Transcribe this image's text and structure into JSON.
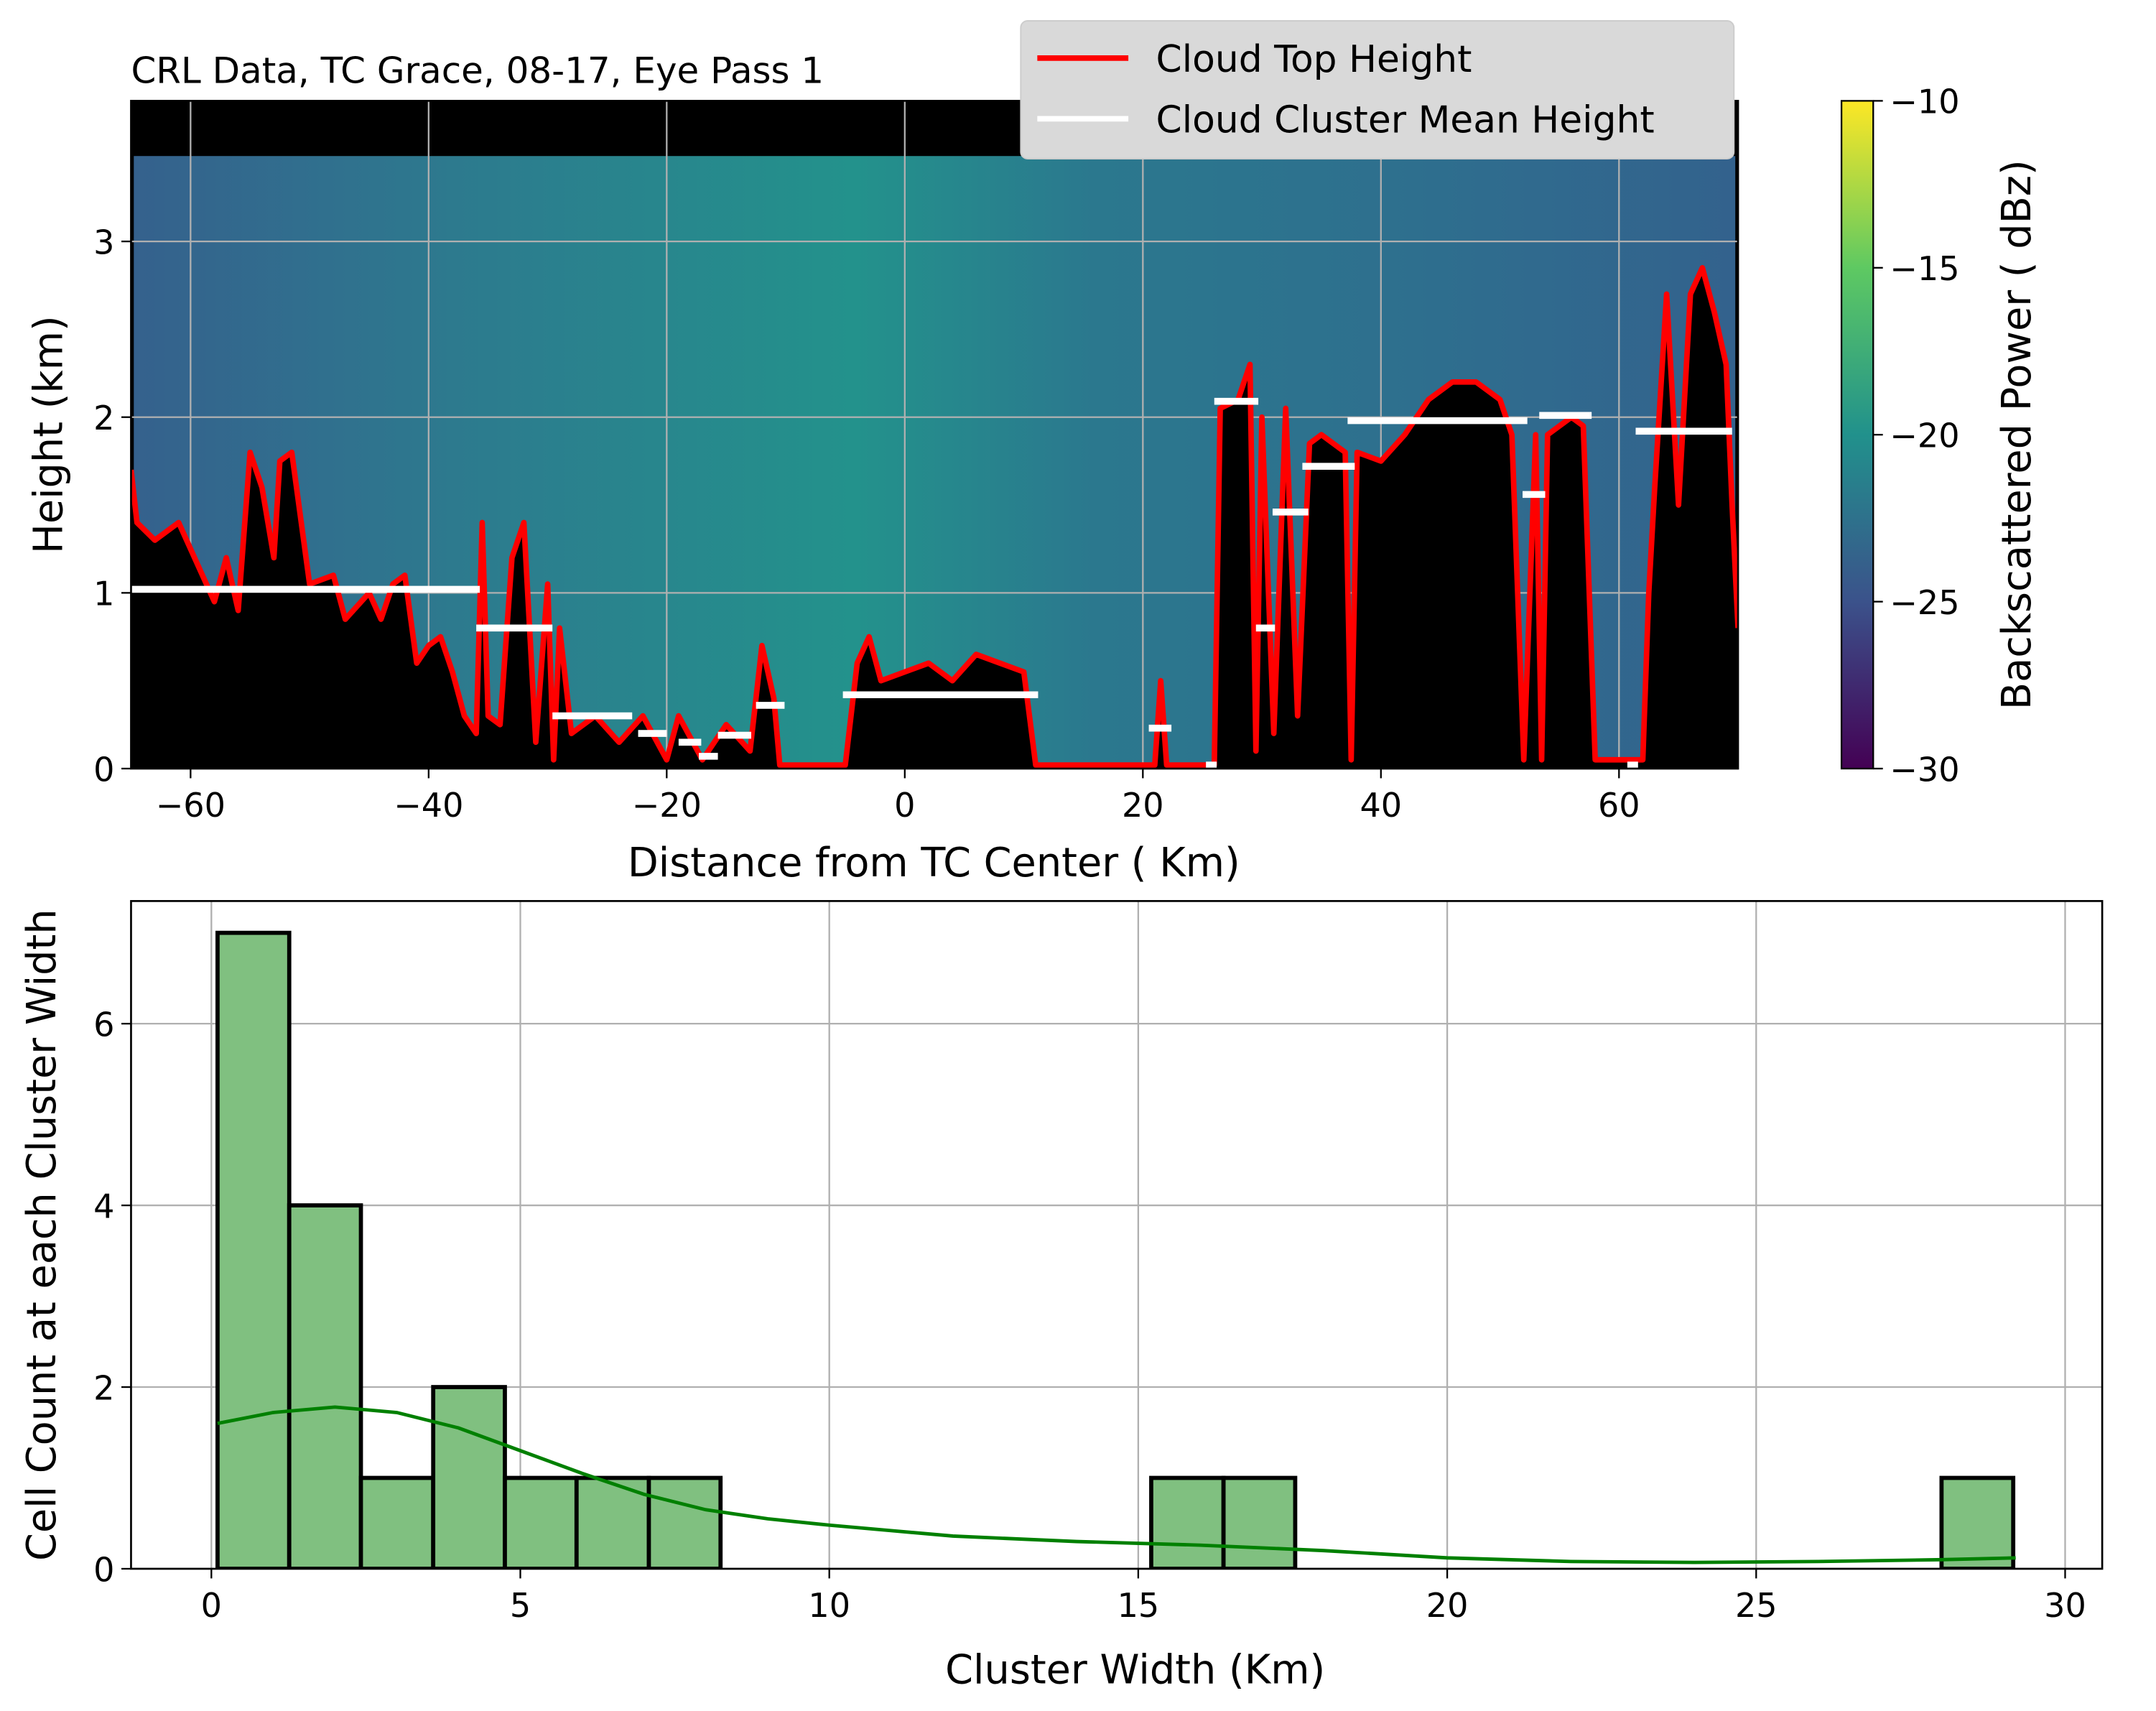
{
  "chart_data": [
    {
      "type": "curtain",
      "title": "CRL Data, TC Grace, 08-17, Eye Pass 1",
      "xlabel": "Distance from TC Center ( Km)",
      "ylabel": "Height (km)",
      "xlim": [
        -65,
        70
      ],
      "ylim": [
        0,
        3.8
      ],
      "xticks": [
        {
          "value": -60,
          "label": "−60"
        },
        {
          "value": -40,
          "label": "−40"
        },
        {
          "value": -20,
          "label": "−20"
        },
        0,
        20,
        40,
        60
      ],
      "yticks": [
        0,
        1,
        2,
        3
      ],
      "grid": true,
      "legend": "upper right",
      "colorbar": {
        "label": "Backscattered Power ( dBz)",
        "colormap": "viridis",
        "lim": [
          -30,
          -10
        ],
        "ticks": [
          {
            "value": -30,
            "label": "−30"
          },
          {
            "value": -25,
            "label": "−25"
          },
          {
            "value": -20,
            "label": "−20"
          },
          {
            "value": -15,
            "label": "−15"
          },
          {
            "value": -10,
            "label": "−10"
          }
        ]
      },
      "series": [
        {
          "name": "Cloud Top Height",
          "color": "#ff0000",
          "x": [
            -65,
            -64.5,
            -63,
            -61,
            -59,
            -58,
            -57,
            -56,
            -55,
            -54,
            -53,
            -52.5,
            -51.5,
            -50.5,
            -50,
            -48,
            -47,
            -45,
            -44,
            -43,
            -42,
            -41,
            -40,
            -39,
            -38,
            -37,
            -36,
            -35.5,
            -35,
            -34,
            -33,
            -32,
            -31,
            -30,
            -29.5,
            -29,
            -28,
            -26,
            -24,
            -22,
            -20,
            -19,
            -17,
            -15,
            -13,
            -12,
            -11,
            -10.5,
            -5,
            -4,
            -3,
            -2,
            0,
            2,
            4,
            6,
            8,
            10,
            11,
            21,
            21.5,
            22,
            26,
            26.5,
            28,
            29,
            29.5,
            30,
            31,
            32,
            33,
            34,
            35,
            36,
            37,
            37.5,
            38,
            40,
            42,
            44,
            46,
            48,
            50,
            51,
            52,
            53,
            53.5,
            54,
            56,
            57,
            58,
            62,
            62.5,
            63,
            64,
            65,
            66,
            67,
            68,
            69,
            69.5,
            70
          ],
          "values": [
            1.7,
            1.4,
            1.3,
            1.4,
            1.1,
            0.95,
            1.2,
            0.9,
            1.8,
            1.6,
            1.2,
            1.75,
            1.8,
            1.3,
            1.05,
            1.1,
            0.85,
            1.0,
            0.85,
            1.05,
            1.1,
            0.6,
            0.7,
            0.75,
            0.55,
            0.3,
            0.2,
            1.4,
            0.3,
            0.25,
            1.2,
            1.4,
            0.15,
            1.05,
            0.05,
            0.8,
            0.2,
            0.3,
            0.15,
            0.3,
            0.05,
            0.3,
            0.05,
            0.25,
            0.1,
            0.7,
            0.4,
            0.02,
            0.02,
            0.6,
            0.75,
            0.5,
            0.55,
            0.6,
            0.5,
            0.65,
            0.6,
            0.55,
            0.02,
            0.02,
            0.5,
            0.02,
            0.02,
            2.05,
            2.1,
            2.3,
            0.1,
            2.0,
            0.2,
            2.05,
            0.3,
            1.85,
            1.9,
            1.85,
            1.8,
            0.05,
            1.8,
            1.75,
            1.9,
            2.1,
            2.2,
            2.2,
            2.1,
            1.9,
            0.05,
            1.9,
            0.05,
            1.9,
            2.0,
            1.95,
            0.05,
            0.05,
            1.0,
            1.6,
            2.7,
            1.5,
            2.7,
            2.85,
            2.6,
            2.3,
            1.5,
            0.8
          ]
        },
        {
          "name": "Cloud Cluster Mean Height",
          "color": "#ffffff",
          "x_start": [
            -65,
            -36,
            -29.6,
            -22.4,
            -19,
            -17.3,
            -15.7,
            -12.5,
            -5.2,
            20.5,
            25.3,
            26,
            29.5,
            30.9,
            33.4,
            37.2,
            51.9,
            53.3,
            60.7,
            61.4
          ],
          "x_end": [
            -35.7,
            -29.6,
            -22.9,
            -20,
            -17.1,
            -15.7,
            -12.9,
            -10.1,
            11.2,
            22.4,
            26.2,
            29.7,
            31.1,
            33.9,
            37.8,
            52.3,
            53.8,
            57.7,
            61.6,
            69.5
          ],
          "values": [
            1.02,
            0.8,
            0.3,
            0.2,
            0.15,
            0.07,
            0.19,
            0.36,
            0.42,
            0.23,
            0.02,
            2.09,
            0.8,
            1.46,
            1.72,
            1.98,
            1.56,
            2.01,
            0.02,
            1.92
          ]
        }
      ]
    },
    {
      "type": "histogram",
      "xlabel": "Cluster Width (Km)",
      "ylabel": "Cell Count at each Cluster Width",
      "xlim": [
        -1.3,
        30.6
      ],
      "ylim": [
        0,
        7.35
      ],
      "xticks": [
        0,
        5,
        10,
        15,
        20,
        25,
        30
      ],
      "yticks": [
        0,
        2,
        4,
        6
      ],
      "grid": true,
      "color": "#80c080",
      "edgecolor": "#000000",
      "bins": [
        0.1,
        1.26,
        2.42,
        3.59,
        4.75,
        5.91,
        7.08,
        8.24,
        9.4,
        10.56,
        11.72,
        12.89,
        14.05,
        15.21,
        16.38,
        17.54,
        18.7,
        19.86,
        21.03,
        22.19,
        23.35,
        24.51,
        25.68,
        26.84,
        28.0,
        29.16
      ],
      "counts": [
        7,
        4,
        1,
        2,
        1,
        1,
        1,
        0,
        0,
        0,
        0,
        0,
        0,
        1,
        1,
        0,
        0,
        0,
        0,
        0,
        0,
        0,
        0,
        0,
        1
      ],
      "kde": {
        "color": "#008000",
        "x": [
          0.1,
          1,
          2,
          3,
          4,
          5,
          6,
          7,
          8,
          9,
          10,
          11,
          12,
          14,
          16,
          18,
          20,
          22,
          24,
          26,
          28,
          29.2
        ],
        "values": [
          1.6,
          1.72,
          1.78,
          1.72,
          1.55,
          1.3,
          1.05,
          0.82,
          0.65,
          0.55,
          0.48,
          0.42,
          0.36,
          0.3,
          0.26,
          0.2,
          0.12,
          0.08,
          0.07,
          0.08,
          0.1,
          0.12
        ]
      }
    }
  ]
}
